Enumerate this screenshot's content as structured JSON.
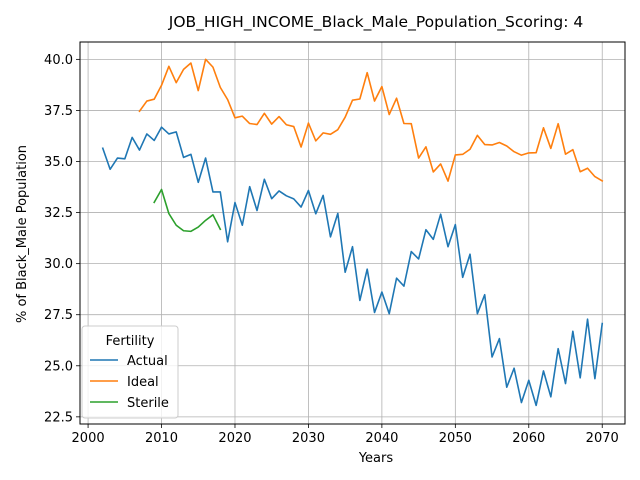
{
  "chart_data": {
    "type": "line",
    "title": "JOB_HIGH_INCOME_Black_Male_Population_Scoring: 4",
    "xlabel": "Years",
    "ylabel": "% of Black_Male Population",
    "xlim": [
      1998.9,
      2073.1
    ],
    "ylim": [
      22.15,
      40.85
    ],
    "xticks": [
      2000,
      2010,
      2020,
      2030,
      2040,
      2050,
      2060,
      2070
    ],
    "yticks": [
      22.5,
      25.0,
      27.5,
      30.0,
      32.5,
      35.0,
      37.5,
      40.0
    ],
    "ytick_labels": [
      "22.5",
      "25.0",
      "27.5",
      "30.0",
      "32.5",
      "35.0",
      "37.5",
      "40.0"
    ],
    "grid": true,
    "legend": {
      "title": "Fertility",
      "position": "lower-left"
    },
    "series": [
      {
        "name": "Actual",
        "color": "#1f77b4",
        "x": [
          2002,
          2003,
          2004,
          2005,
          2006,
          2007,
          2008,
          2009,
          2010,
          2011,
          2012,
          2013,
          2014,
          2015,
          2016,
          2017,
          2018,
          2019,
          2020,
          2021,
          2022,
          2023,
          2024,
          2025,
          2026,
          2027,
          2028,
          2029,
          2030,
          2031,
          2032,
          2033,
          2034,
          2035,
          2036,
          2037,
          2038,
          2039,
          2040,
          2041,
          2042,
          2043,
          2044,
          2045,
          2046,
          2047,
          2048,
          2049,
          2050,
          2051,
          2052,
          2053,
          2054,
          2055,
          2056,
          2057,
          2058,
          2059,
          2060,
          2061,
          2062,
          2063,
          2064,
          2065,
          2066,
          2067,
          2068,
          2069,
          2070
        ],
        "values": [
          35.65,
          34.62,
          35.17,
          35.13,
          36.18,
          35.56,
          36.35,
          36.03,
          36.68,
          36.35,
          36.45,
          35.2,
          35.35,
          33.98,
          35.17,
          33.51,
          33.51,
          31.07,
          32.99,
          31.88,
          33.77,
          32.6,
          34.13,
          33.18,
          33.56,
          33.32,
          33.17,
          32.77,
          33.58,
          32.44,
          33.34,
          31.31,
          32.46,
          29.58,
          30.83,
          28.2,
          29.73,
          27.61,
          28.61,
          27.55,
          29.29,
          28.9,
          30.59,
          30.23,
          31.66,
          31.19,
          32.42,
          30.83,
          31.91,
          29.33,
          30.46,
          27.55,
          28.48,
          25.43,
          26.33,
          23.95,
          24.88,
          23.2,
          24.29,
          23.06,
          24.75,
          23.48,
          25.84,
          24.13,
          26.69,
          24.41,
          27.28,
          24.37,
          27.07
        ]
      },
      {
        "name": "Ideal",
        "color": "#ff7f0e",
        "x": [
          2007,
          2008,
          2009,
          2010,
          2011,
          2012,
          2013,
          2014,
          2015,
          2016,
          2017,
          2018,
          2019,
          2020,
          2021,
          2022,
          2023,
          2024,
          2025,
          2026,
          2027,
          2028,
          2029,
          2030,
          2031,
          2032,
          2033,
          2034,
          2035,
          2036,
          2037,
          2038,
          2039,
          2040,
          2041,
          2042,
          2043,
          2044,
          2045,
          2046,
          2047,
          2048,
          2049,
          2050,
          2051,
          2052,
          2053,
          2054,
          2055,
          2056,
          2057,
          2058,
          2059,
          2060,
          2061,
          2062,
          2063,
          2064,
          2065,
          2066,
          2067,
          2068,
          2069,
          2070
        ],
        "values": [
          37.46,
          37.96,
          38.05,
          38.73,
          39.66,
          38.86,
          39.51,
          39.82,
          38.47,
          40.0,
          39.62,
          38.63,
          38.03,
          37.14,
          37.22,
          36.86,
          36.81,
          37.36,
          36.83,
          37.2,
          36.8,
          36.71,
          35.71,
          36.88,
          36.01,
          36.4,
          36.33,
          36.56,
          37.17,
          38.0,
          38.06,
          39.35,
          37.96,
          38.67,
          37.3,
          38.1,
          36.86,
          36.85,
          35.17,
          35.72,
          34.49,
          34.88,
          34.04,
          35.32,
          35.35,
          35.6,
          36.28,
          35.83,
          35.81,
          35.93,
          35.76,
          35.48,
          35.31,
          35.42,
          35.43,
          36.65,
          35.64,
          36.85,
          35.36,
          35.58,
          34.5,
          34.67,
          34.26,
          34.05
        ]
      },
      {
        "name": "Sterile",
        "color": "#2ca02c",
        "x": [
          2009,
          2010,
          2011,
          2012,
          2013,
          2014,
          2015,
          2016,
          2017,
          2018
        ],
        "values": [
          33.0,
          33.63,
          32.45,
          31.88,
          31.61,
          31.58,
          31.79,
          32.12,
          32.39,
          31.68
        ]
      }
    ]
  }
}
